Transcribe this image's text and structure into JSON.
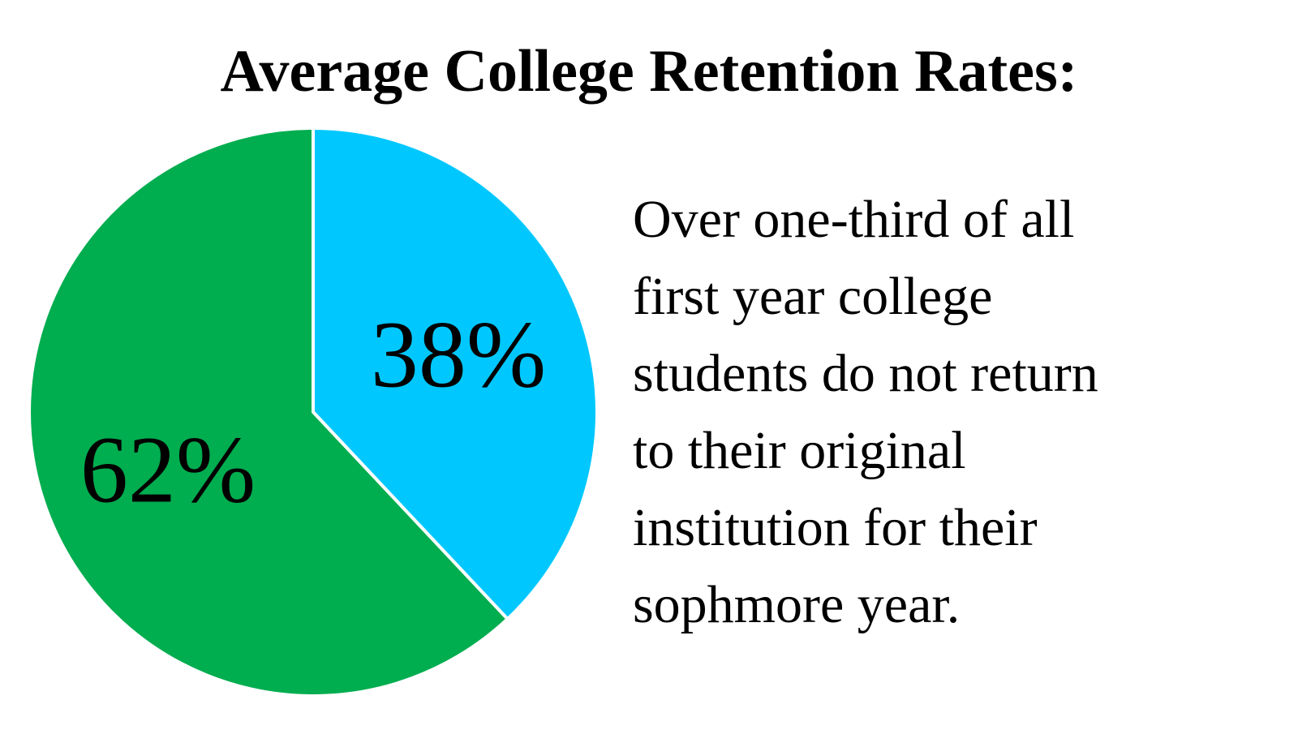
{
  "chart_data": {
    "type": "pie",
    "title": "Average College Retention Rates:",
    "values": [
      38,
      62
    ],
    "value_labels": [
      "38%",
      "62%"
    ],
    "colors": [
      "#00c8ff",
      "#00ad4f"
    ],
    "annotation": [
      "Over one-third of all",
      "first year college",
      "students do not return",
      "to their original",
      "institution for their",
      "sophmore year."
    ]
  }
}
